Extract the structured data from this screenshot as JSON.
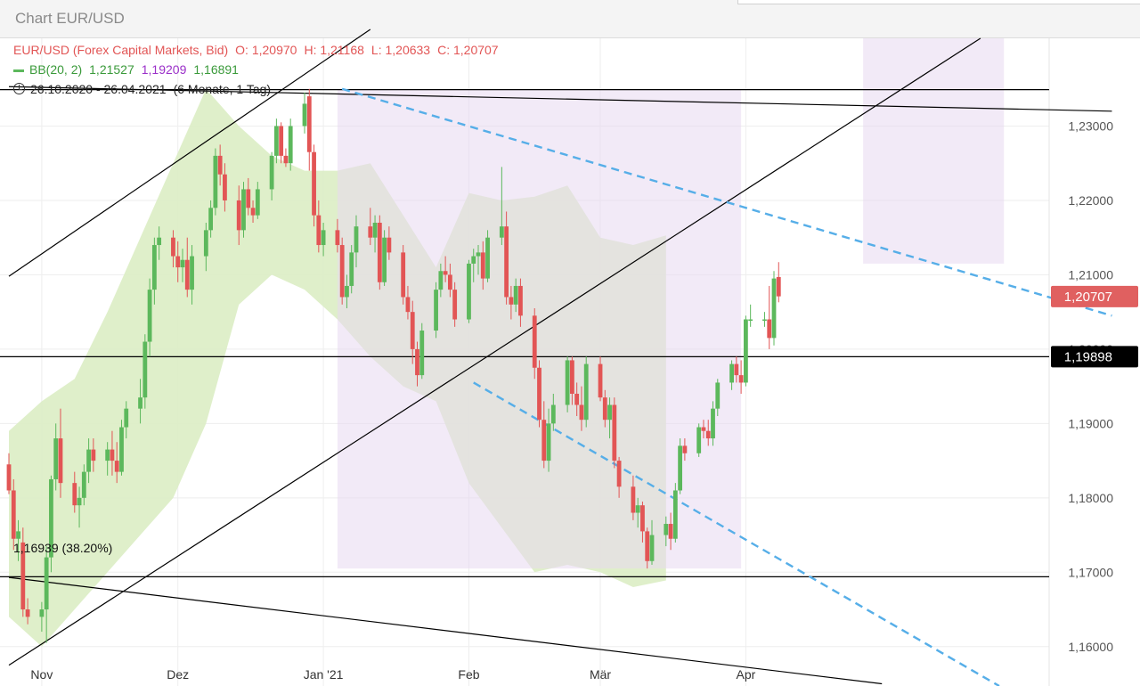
{
  "page": {
    "title": "Chart EUR/USD"
  },
  "legend": {
    "instrument": "EUR/USD (Forex Capital Markets, Bid)",
    "open": "O: 1,20970",
    "high": "H: 1,21168",
    "low": "L: 1,20633",
    "close": "C: 1,20707",
    "bb_label": "BB(20, 2)",
    "bb_upper": "1,21527",
    "bb_middle": "1,19209",
    "bb_lower": "1,16891",
    "period": "26.10.2020 - 26.04.2021",
    "period_note": "(6 Monate, 1 Tag)"
  },
  "annotations": {
    "fib_label": "1,16939 (38.20%)",
    "last_price": "1,20707",
    "hline_price": "1,19898"
  },
  "colors": {
    "up": "#5cb85c",
    "down": "#e25555",
    "bb_band": "#dbedc4",
    "highlight": "#e8d8f0",
    "trend_dashed": "#56aee8",
    "price_tag_bg": "#e06060",
    "hline_tag_bg": "#000000"
  },
  "chart_data": {
    "type": "candlestick",
    "y_axis": {
      "min": 1.1547,
      "max": 1.2418,
      "ticks": [
        1.16,
        1.17,
        1.18,
        1.19,
        1.2,
        1.21,
        1.22,
        1.23
      ],
      "tick_labels": [
        "1,16000",
        "1,17000",
        "1,18000",
        "1,19000",
        "1,20000",
        "1,21000",
        "1,22000",
        "1,23000"
      ]
    },
    "x_axis": {
      "labels": [
        {
          "text": "Nov",
          "date": "2020-11-02"
        },
        {
          "text": "Dez",
          "date": "2020-12-01"
        },
        {
          "text": "Jan '21",
          "date": "2021-01-01"
        },
        {
          "text": "Feb",
          "date": "2021-02-01"
        },
        {
          "text": "Mär",
          "date": "2021-03-01"
        },
        {
          "text": "Apr",
          "date": "2021-04-01"
        }
      ]
    },
    "candles": [
      [
        1.1845,
        1.186,
        1.1805,
        1.181
      ],
      [
        1.181,
        1.1825,
        1.173,
        1.1745
      ],
      [
        1.1745,
        1.177,
        1.1715,
        1.1755
      ],
      [
        1.174,
        1.176,
        1.164,
        1.165
      ],
      [
        1.165,
        1.1665,
        1.163,
        1.164
      ],
      [
        1.164,
        1.166,
        1.162,
        1.165
      ],
      [
        1.165,
        1.1735,
        1.1605,
        1.172
      ],
      [
        1.172,
        1.183,
        1.17,
        1.1825
      ],
      [
        1.1825,
        1.19,
        1.181,
        1.188
      ],
      [
        1.188,
        1.192,
        1.18,
        1.182
      ],
      [
        1.182,
        1.1835,
        1.178,
        1.179
      ],
      [
        1.179,
        1.1815,
        1.176,
        1.18
      ],
      [
        1.18,
        1.1845,
        1.179,
        1.1835
      ],
      [
        1.1835,
        1.188,
        1.182,
        1.1865
      ],
      [
        1.1865,
        1.188,
        1.1835,
        1.185
      ],
      [
        1.185,
        1.1875,
        1.183,
        1.1865
      ],
      [
        1.1865,
        1.189,
        1.183,
        1.185
      ],
      [
        1.185,
        1.1875,
        1.182,
        1.1835
      ],
      [
        1.1835,
        1.1905,
        1.183,
        1.1895
      ],
      [
        1.1895,
        1.193,
        1.188,
        1.192
      ],
      [
        1.192,
        1.196,
        1.19,
        1.1935
      ],
      [
        1.1935,
        1.202,
        1.192,
        1.201
      ],
      [
        1.201,
        1.2095,
        1.199,
        1.208
      ],
      [
        1.208,
        1.215,
        1.206,
        1.214
      ],
      [
        1.214,
        1.2165,
        1.212,
        1.215
      ],
      [
        1.215,
        1.216,
        1.211,
        1.2125
      ],
      [
        1.2125,
        1.2145,
        1.209,
        1.211
      ],
      [
        1.211,
        1.2135,
        1.209,
        1.212
      ],
      [
        1.212,
        1.215,
        1.207,
        1.208
      ],
      [
        1.208,
        1.214,
        1.206,
        1.2125
      ],
      [
        1.2125,
        1.217,
        1.2105,
        1.216
      ],
      [
        1.216,
        1.22,
        1.215,
        1.219
      ],
      [
        1.219,
        1.227,
        1.218,
        1.226
      ],
      [
        1.226,
        1.2275,
        1.222,
        1.2235
      ],
      [
        1.2235,
        1.225,
        1.2185,
        1.22
      ],
      [
        1.22,
        1.222,
        1.214,
        1.216
      ],
      [
        1.216,
        1.2225,
        1.215,
        1.2215
      ],
      [
        1.2215,
        1.223,
        1.218,
        1.219
      ],
      [
        1.219,
        1.22,
        1.217,
        1.218
      ],
      [
        1.218,
        1.2225,
        1.2175,
        1.2215
      ],
      [
        1.2215,
        1.2265,
        1.22,
        1.226
      ],
      [
        1.226,
        1.231,
        1.225,
        1.23
      ],
      [
        1.23,
        1.2305,
        1.225,
        1.226
      ],
      [
        1.226,
        1.227,
        1.2245,
        1.225
      ],
      [
        1.225,
        1.231,
        1.224,
        1.23
      ],
      [
        1.23,
        1.2345,
        1.229,
        1.233
      ],
      [
        1.234,
        1.235,
        1.224,
        1.2265
      ],
      [
        1.2265,
        1.2275,
        1.2165,
        1.218
      ],
      [
        1.218,
        1.22,
        1.213,
        1.214
      ],
      [
        1.214,
        1.217,
        1.2125,
        1.216
      ],
      [
        1.216,
        1.2175,
        1.213,
        1.214
      ],
      [
        1.214,
        1.215,
        1.206,
        1.207
      ],
      [
        1.207,
        1.21,
        1.2055,
        1.2085
      ],
      [
        1.2085,
        1.214,
        1.2075,
        1.213
      ],
      [
        1.213,
        1.218,
        1.211,
        1.2165
      ],
      [
        1.2165,
        1.219,
        1.214,
        1.215
      ],
      [
        1.215,
        1.218,
        1.213,
        1.217
      ],
      [
        1.217,
        1.218,
        1.208,
        1.209
      ],
      [
        1.209,
        1.216,
        1.2085,
        1.215
      ],
      [
        1.215,
        1.2165,
        1.212,
        1.213
      ],
      [
        1.213,
        1.214,
        1.206,
        1.207
      ],
      [
        1.207,
        1.2085,
        1.204,
        1.205
      ],
      [
        1.205,
        1.2065,
        1.198,
        1.2
      ],
      [
        1.2,
        1.201,
        1.195,
        1.1965
      ],
      [
        1.1965,
        1.2035,
        1.196,
        1.2025
      ],
      [
        1.2025,
        1.209,
        1.2015,
        1.208
      ],
      [
        1.208,
        1.2115,
        1.207,
        1.2105
      ],
      [
        1.2105,
        1.2125,
        1.209,
        1.21
      ],
      [
        1.21,
        1.2115,
        1.207,
        1.208
      ],
      [
        1.208,
        1.209,
        1.203,
        1.204
      ],
      [
        1.204,
        1.212,
        1.2035,
        1.2115
      ],
      [
        1.2115,
        1.2135,
        1.209,
        1.2125
      ],
      [
        1.2125,
        1.214,
        1.21,
        1.213
      ],
      [
        1.213,
        1.2145,
        1.208,
        1.2095
      ],
      [
        1.2095,
        1.216,
        1.209,
        1.215
      ],
      [
        1.215,
        1.2245,
        1.214,
        1.2165
      ],
      [
        1.2165,
        1.2185,
        1.206,
        1.207
      ],
      [
        1.207,
        1.2085,
        1.204,
        1.206
      ],
      [
        1.206,
        1.2095,
        1.205,
        1.2085
      ],
      [
        1.2085,
        1.2095,
        1.203,
        1.2045
      ],
      [
        1.2045,
        1.2055,
        1.196,
        1.1975
      ],
      [
        1.1975,
        1.1985,
        1.1895,
        1.1905
      ],
      [
        1.1905,
        1.193,
        1.184,
        1.185
      ],
      [
        1.185,
        1.192,
        1.1835,
        1.19
      ],
      [
        1.19,
        1.194,
        1.189,
        1.1925
      ],
      [
        1.1925,
        1.199,
        1.1915,
        1.1985
      ],
      [
        1.1985,
        1.199,
        1.1925,
        1.194
      ],
      [
        1.194,
        1.1955,
        1.191,
        1.1925
      ],
      [
        1.1925,
        1.195,
        1.189,
        1.1905
      ],
      [
        1.1905,
        1.199,
        1.1895,
        1.198
      ],
      [
        1.198,
        1.199,
        1.193,
        1.1935
      ],
      [
        1.1935,
        1.1945,
        1.1895,
        1.1905
      ],
      [
        1.1905,
        1.1935,
        1.188,
        1.1925
      ],
      [
        1.1925,
        1.1935,
        1.184,
        1.185
      ],
      [
        1.185,
        1.1855,
        1.18,
        1.1815
      ],
      [
        1.1815,
        1.183,
        1.177,
        1.178
      ],
      [
        1.178,
        1.18,
        1.176,
        1.179
      ],
      [
        1.179,
        1.1795,
        1.174,
        1.1755
      ],
      [
        1.1755,
        1.176,
        1.1705,
        1.1715
      ],
      [
        1.1715,
        1.177,
        1.171,
        1.175
      ],
      [
        1.175,
        1.1775,
        1.1735,
        1.1765
      ],
      [
        1.1765,
        1.178,
        1.173,
        1.1745
      ],
      [
        1.1745,
        1.182,
        1.174,
        1.181
      ],
      [
        1.181,
        1.188,
        1.1805,
        1.187
      ],
      [
        1.187,
        1.188,
        1.185,
        1.186
      ],
      [
        1.186,
        1.19,
        1.1855,
        1.1895
      ],
      [
        1.1895,
        1.1905,
        1.188,
        1.189
      ],
      [
        1.189,
        1.1905,
        1.187,
        1.188
      ],
      [
        1.188,
        1.193,
        1.187,
        1.192
      ],
      [
        1.192,
        1.196,
        1.191,
        1.1955
      ],
      [
        1.1955,
        1.1985,
        1.1945,
        1.198
      ],
      [
        1.198,
        1.199,
        1.1955,
        1.1965
      ],
      [
        1.1965,
        1.1985,
        1.194,
        1.1955
      ],
      [
        1.1955,
        1.2045,
        1.195,
        1.204
      ],
      [
        1.204,
        1.206,
        1.203,
        1.204
      ],
      [
        1.204,
        1.205,
        1.203,
        1.204
      ],
      [
        1.204,
        1.2085,
        1.2,
        1.2015
      ],
      [
        1.2015,
        1.2105,
        1.2005,
        1.2095
      ],
      [
        1.2097,
        1.2117,
        1.2063,
        1.2071
      ]
    ],
    "bollinger_bands": {
      "upper": [
        1.189,
        1.193,
        1.196,
        1.205,
        1.215,
        1.225,
        1.235,
        1.23,
        1.226,
        1.224,
        1.224,
        1.225,
        1.218,
        1.211,
        1.221,
        1.22,
        1.2205,
        1.222,
        1.215,
        1.214,
        1.2153
      ],
      "lower": [
        1.164,
        1.16,
        1.165,
        1.17,
        1.175,
        1.18,
        1.19,
        1.206,
        1.21,
        1.208,
        1.204,
        1.199,
        1.195,
        1.193,
        1.182,
        1.176,
        1.17,
        1.171,
        1.17,
        1.168,
        1.1689
      ]
    },
    "highlight_ranges": [
      {
        "from": "2021-01-04",
        "to": "2021-03-31",
        "y_from": 1.1705,
        "y_to": 1.235
      },
      {
        "from": "2021-04-26",
        "to": "2021-05-26",
        "y_from": 1.2115,
        "y_to": 1.2418
      }
    ],
    "horizontal_lines": [
      1.2349,
      1.19898,
      1.16939
    ],
    "trend_lines": [
      {
        "style": "solid",
        "from": [
          "2020-10-26",
          1.2098
        ],
        "to": [
          "2021-01-11",
          1.243
        ]
      },
      {
        "style": "solid",
        "from": [
          "2020-10-26",
          1.1575
        ],
        "to": [
          "2021-05-21",
          1.2418
        ]
      },
      {
        "style": "solid",
        "from": [
          "2020-10-26",
          1.2353
        ],
        "to": [
          "2021-06-18",
          1.232
        ]
      },
      {
        "style": "solid",
        "from": [
          "2020-10-26",
          1.1693
        ],
        "to": [
          "2021-04-30",
          1.155
        ]
      },
      {
        "style": "dashed",
        "from": [
          "2021-01-05",
          1.235
        ],
        "to": [
          "2021-06-18",
          1.2045
        ]
      },
      {
        "style": "dashed",
        "from": [
          "2021-02-02",
          1.1955
        ],
        "to": [
          "2021-05-25",
          1.1547
        ]
      }
    ]
  }
}
